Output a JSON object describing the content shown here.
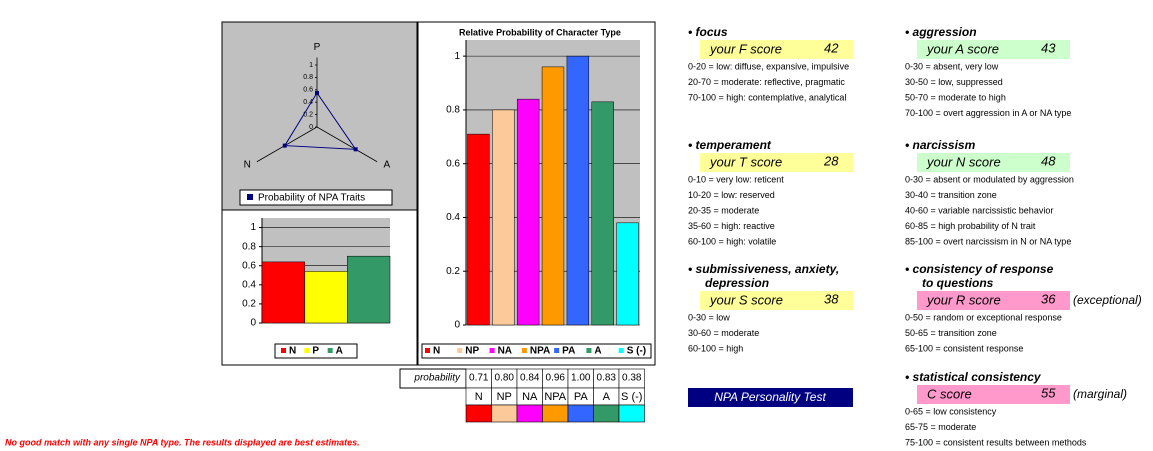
{
  "chart_data": [
    {
      "type": "radar",
      "categories": [
        "P",
        "A",
        "N"
      ],
      "values": [
        0.55,
        0.72,
        0.6
      ],
      "rlim": [
        0,
        1
      ],
      "rticks": [
        0,
        0.2,
        0.4,
        0.6,
        0.8,
        1
      ],
      "legend": "Probability of NPA Traits",
      "color": "#000080"
    },
    {
      "type": "bar",
      "categories": [
        "N",
        "P",
        "A"
      ],
      "values": [
        0.64,
        0.54,
        0.7
      ],
      "colors": [
        "#ff0000",
        "#ffff00",
        "#339966"
      ],
      "ylim": [
        0,
        1.1
      ],
      "yticks": [
        0,
        0.2,
        0.4,
        0.6,
        0.8,
        1
      ],
      "grid": true
    },
    {
      "type": "bar",
      "title": "Relative Probability of Character Type",
      "categories": [
        "N",
        "NP",
        "NA",
        "NPA",
        "PA",
        "A",
        "S (-)"
      ],
      "values": [
        0.71,
        0.8,
        0.84,
        0.96,
        1.0,
        0.83,
        0.38
      ],
      "value_labels": [
        "0.71",
        "0.80",
        "0.84",
        "0.96",
        "1.00",
        "0.83",
        "0.38"
      ],
      "colors": [
        "#ff0000",
        "#fcc99a",
        "#ff00ff",
        "#ff9900",
        "#3366ff",
        "#339966",
        "#00ffff"
      ],
      "ylim": [
        0,
        1.06
      ],
      "yticks": [
        0,
        0.2,
        0.4,
        0.6,
        0.8,
        1
      ],
      "grid": true
    }
  ],
  "table": {
    "row_label": "probability"
  },
  "footnote": "No good match with any single NPA type. The results displayed are best estimates.",
  "button": "NPA Personality Test",
  "sections": [
    {
      "heading": [
        "• focus"
      ],
      "score_label": "your F score",
      "score": 42,
      "box_color": "#ffff99",
      "lines": [
        "0-20 = low: diffuse, expansive, impulsive",
        "20-70 = moderate: reflective, pragmatic",
        "70-100 = high: contemplative, analytical"
      ]
    },
    {
      "heading": [
        "• temperament"
      ],
      "score_label": "your T score",
      "score": 28,
      "box_color": "#ffff99",
      "lines": [
        "0-10 = very low: reticent",
        "10-20 = low: reserved",
        "20-35 = moderate",
        "35-60 = high: reactive",
        "60-100 = high: volatile"
      ]
    },
    {
      "heading": [
        "• submissiveness, anxiety,",
        "depression"
      ],
      "score_label": "your S score",
      "score": 38,
      "box_color": "#ffff99",
      "lines": [
        "0-30 = low",
        "30-60 = moderate",
        "60-100 = high"
      ]
    },
    {
      "heading": [
        "• aggression"
      ],
      "score_label": "your A score",
      "score": 43,
      "box_color": "#ccffcc",
      "lines": [
        "0-30 = absent, very low",
        "30-50 = low, suppressed",
        "50-70 = moderate to high",
        "70-100 = overt aggression in A or NA type"
      ]
    },
    {
      "heading": [
        "• narcissism"
      ],
      "score_label": "your N score",
      "score": 48,
      "box_color": "#ccffcc",
      "lines": [
        "0-30 = absent or modulated by aggression",
        "30-40 = transition zone",
        "40-60 = variable narcissistic behavior",
        "60-85 = high probability of N trait",
        "85-100 = overt narcissism in N or NA type"
      ]
    },
    {
      "heading": [
        "• consistency of response",
        "to questions"
      ],
      "score_label": "your R score",
      "score": 36,
      "note": "(exceptional)",
      "box_color": "#ff99cc",
      "lines": [
        "0-50 = random or exceptional response",
        "50-65 = transition zone",
        "65-100 = consistent response"
      ]
    },
    {
      "heading": [
        "• statistical consistency"
      ],
      "score_label": "C score",
      "score": 55,
      "note": "(marginal)",
      "box_color": "#ff99cc",
      "lines": [
        "0-65 = low consistency",
        "65-75 = moderate",
        "75-100 = consistent results between methods"
      ]
    }
  ]
}
